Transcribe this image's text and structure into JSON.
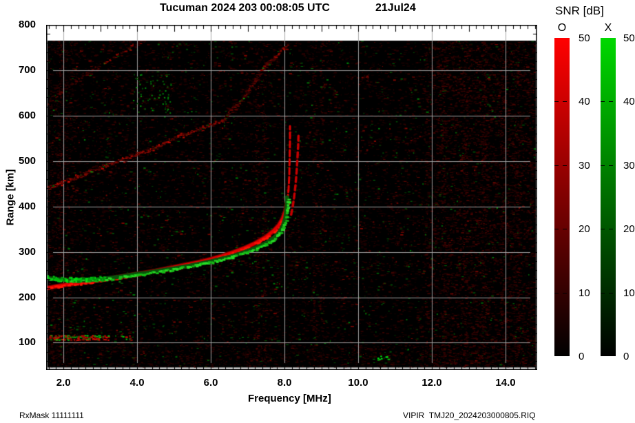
{
  "header": {
    "title": "Tucuman 2024 203 00:08:05 UTC",
    "date": "21Jul24"
  },
  "footer": {
    "rx_mask": "RxMask 11111111",
    "file": "VIPIR  TMJ20_2024203000805.RIQ"
  },
  "axes": {
    "x_label": "Frequency [MHz]",
    "y_label": "Range [km]",
    "x_tick_labels": [
      "2.0",
      "4.0",
      "6.0",
      "8.0",
      "10.0",
      "12.0",
      "14.0"
    ],
    "x_tick_values": [
      2,
      4,
      6,
      8,
      10,
      12,
      14
    ],
    "y_tick_labels": [
      "800",
      "700",
      "600",
      "500",
      "400",
      "300",
      "200",
      "100"
    ],
    "y_tick_values": [
      800,
      700,
      600,
      500,
      400,
      300,
      200,
      100
    ]
  },
  "colorbar": {
    "title": "SNR [dB]",
    "o_label": "O",
    "x_label": "X",
    "tick_labels": [
      "50",
      "40",
      "30",
      "20",
      "10",
      "0"
    ],
    "tick_values": [
      50,
      40,
      30,
      20,
      10,
      0
    ],
    "dash_values": [
      40,
      30,
      20,
      10
    ],
    "o_top_color": "#ff0000",
    "x_top_color": "#00d800",
    "bottom_color": "#000000"
  },
  "chart_data": {
    "type": "heatmap",
    "subtype": "ionogram",
    "title": "Tucuman 2024 203 00:08:05 UTC 21Jul24",
    "xlabel": "Frequency [MHz]",
    "ylabel": "Range [km]",
    "xlim": [
      1.53,
      14.86
    ],
    "ylim": [
      40,
      800
    ],
    "grid": true,
    "snr_scale_db": [
      0,
      50
    ],
    "background_color": "#000000",
    "grid_color": "#a6a6a6",
    "o_color_bright": "#ff1505",
    "o_color_core": "#dd0000",
    "o_color_dark": "#6e0000",
    "x_color_bright": "#27da27",
    "x_color_core": "#16b916",
    "x_color_dark": "#0a520a",
    "o_trace_mhz_km": [
      [
        1.53,
        220
      ],
      [
        1.8,
        224
      ],
      [
        2.1,
        228
      ],
      [
        2.4,
        231
      ],
      [
        2.7,
        234
      ],
      [
        3.0,
        238
      ],
      [
        3.3,
        242
      ],
      [
        3.6,
        246
      ],
      [
        3.9,
        250
      ],
      [
        4.2,
        254
      ],
      [
        4.5,
        258
      ],
      [
        4.8,
        263
      ],
      [
        5.1,
        268
      ],
      [
        5.4,
        273
      ],
      [
        5.7,
        278
      ],
      [
        6.0,
        284
      ],
      [
        6.3,
        291
      ],
      [
        6.6,
        299
      ],
      [
        6.9,
        308
      ],
      [
        7.2,
        319
      ],
      [
        7.5,
        333
      ],
      [
        7.7,
        346
      ],
      [
        7.85,
        359
      ],
      [
        7.95,
        373
      ],
      [
        8.03,
        391
      ],
      [
        8.08,
        412
      ]
    ],
    "o_asymptote_mhz_km": [
      [
        8.08,
        412
      ],
      [
        8.11,
        437
      ],
      [
        8.13,
        468
      ],
      [
        8.14,
        505
      ],
      [
        8.15,
        545
      ],
      [
        8.15,
        577
      ]
    ],
    "o_second_branch_mhz_km": [
      [
        8.18,
        382
      ],
      [
        8.22,
        398
      ],
      [
        8.26,
        420
      ],
      [
        8.3,
        448
      ],
      [
        8.33,
        477
      ],
      [
        8.35,
        505
      ],
      [
        8.37,
        532
      ],
      [
        8.38,
        556
      ]
    ],
    "x_trace_mhz_km": [
      [
        1.53,
        243
      ],
      [
        1.8,
        240
      ],
      [
        2.1,
        238
      ],
      [
        2.4,
        237
      ],
      [
        2.7,
        238
      ],
      [
        3.0,
        240
      ],
      [
        3.3,
        243
      ],
      [
        3.6,
        246
      ],
      [
        3.9,
        250
      ],
      [
        4.2,
        253
      ],
      [
        4.5,
        257
      ],
      [
        4.8,
        261
      ],
      [
        5.1,
        265
      ],
      [
        5.4,
        269
      ],
      [
        5.7,
        274
      ],
      [
        6.0,
        279
      ],
      [
        6.3,
        285
      ],
      [
        6.6,
        291
      ],
      [
        6.9,
        299
      ],
      [
        7.2,
        308
      ],
      [
        7.5,
        319
      ],
      [
        7.7,
        330
      ],
      [
        7.85,
        342
      ],
      [
        7.95,
        356
      ],
      [
        8.02,
        374
      ],
      [
        8.05,
        392
      ],
      [
        8.07,
        406
      ],
      [
        8.07,
        420
      ]
    ],
    "critical_frequency_foF2_mhz": 8.15,
    "min_virtual_height_km": 220,
    "oblique_band_main_mhz_km": [
      [
        1.53,
        438
      ],
      [
        2.0,
        456
      ],
      [
        2.6,
        475
      ],
      [
        3.2,
        494
      ],
      [
        3.9,
        512
      ],
      [
        4.5,
        532
      ],
      [
        5.1,
        555
      ],
      [
        5.7,
        572
      ],
      [
        6.3,
        590
      ],
      [
        6.8,
        633
      ],
      [
        7.2,
        682
      ],
      [
        7.6,
        722
      ],
      [
        8.1,
        758
      ]
    ],
    "oblique_band_upper_mhz_km": [
      [
        1.53,
        626
      ],
      [
        2.1,
        664
      ],
      [
        2.7,
        697
      ],
      [
        3.3,
        727
      ],
      [
        3.8,
        750
      ],
      [
        4.25,
        772
      ]
    ],
    "e_layer": {
      "km": 112,
      "f_start": 1.53,
      "f_end": 3.85,
      "dense_until": 3.0
    },
    "green_cluster_mhz_km": [
      4.4,
      650
    ],
    "green_dots_mhz_km": [
      10.7,
      66
    ],
    "rfi_columns_mhz": [
      1.9,
      7.25,
      7.45,
      8.8,
      9.0,
      12.3,
      12.9,
      13.4,
      13.9,
      14.3
    ]
  }
}
